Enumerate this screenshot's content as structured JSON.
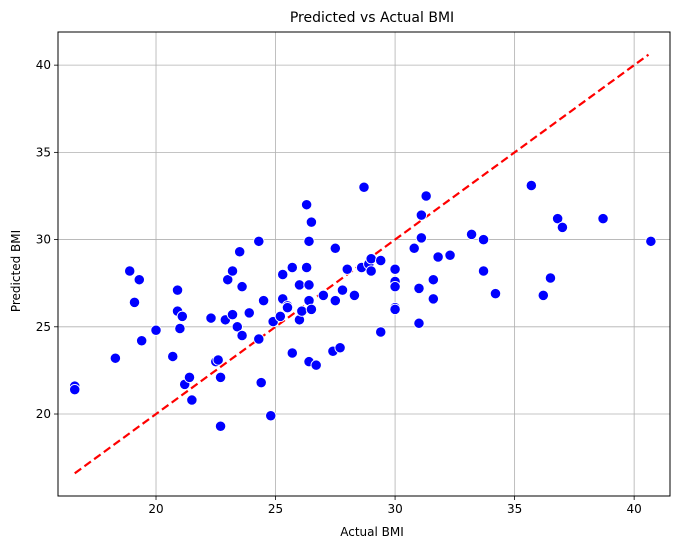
{
  "chart_data": {
    "type": "scatter",
    "title": "Predicted vs Actual BMI",
    "xlabel": "Actual BMI",
    "ylabel": "Predicted BMI",
    "xlim": [
      15.9,
      41.5
    ],
    "ylim": [
      15.3,
      41.9
    ],
    "xticks": [
      20,
      25,
      30,
      35,
      40
    ],
    "yticks": [
      20,
      25,
      30,
      35,
      40
    ],
    "grid": true,
    "point_color": "#0000ff",
    "point_edge_color": "#ffffff",
    "reference_line": {
      "style": "dashed",
      "color": "#ff0000",
      "from": [
        16.6,
        16.6
      ],
      "to": [
        40.6,
        40.6
      ]
    },
    "points": [
      [
        16.6,
        21.6
      ],
      [
        16.6,
        21.4
      ],
      [
        18.3,
        23.2
      ],
      [
        18.9,
        28.2
      ],
      [
        19.1,
        26.4
      ],
      [
        19.3,
        27.7
      ],
      [
        19.4,
        24.2
      ],
      [
        20.0,
        24.8
      ],
      [
        20.7,
        23.3
      ],
      [
        20.9,
        27.1
      ],
      [
        20.9,
        25.9
      ],
      [
        21.0,
        24.9
      ],
      [
        21.1,
        25.6
      ],
      [
        21.2,
        21.7
      ],
      [
        21.4,
        22.1
      ],
      [
        21.5,
        20.8
      ],
      [
        22.3,
        25.5
      ],
      [
        22.5,
        23.0
      ],
      [
        22.6,
        23.1
      ],
      [
        22.7,
        19.3
      ],
      [
        22.7,
        22.1
      ],
      [
        22.9,
        25.4
      ],
      [
        23.0,
        27.7
      ],
      [
        23.2,
        28.2
      ],
      [
        23.2,
        25.7
      ],
      [
        23.4,
        25.0
      ],
      [
        23.5,
        29.3
      ],
      [
        23.6,
        27.3
      ],
      [
        23.6,
        24.5
      ],
      [
        23.9,
        25.8
      ],
      [
        24.3,
        29.9
      ],
      [
        24.3,
        24.3
      ],
      [
        24.4,
        21.8
      ],
      [
        24.5,
        26.5
      ],
      [
        24.8,
        19.9
      ],
      [
        24.9,
        25.3
      ],
      [
        25.2,
        25.6
      ],
      [
        25.3,
        28.0
      ],
      [
        25.3,
        26.6
      ],
      [
        25.5,
        26.2
      ],
      [
        25.5,
        26.1
      ],
      [
        25.7,
        28.4
      ],
      [
        25.7,
        23.5
      ],
      [
        26.0,
        27.4
      ],
      [
        26.0,
        25.4
      ],
      [
        26.1,
        25.9
      ],
      [
        26.3,
        32.0
      ],
      [
        26.3,
        28.4
      ],
      [
        26.4,
        29.9
      ],
      [
        26.4,
        27.4
      ],
      [
        26.4,
        26.5
      ],
      [
        26.4,
        23.0
      ],
      [
        26.5,
        31.0
      ],
      [
        26.5,
        26.0
      ],
      [
        26.7,
        22.8
      ],
      [
        27.0,
        26.8
      ],
      [
        27.4,
        23.6
      ],
      [
        27.5,
        29.5
      ],
      [
        27.5,
        26.5
      ],
      [
        27.7,
        23.8
      ],
      [
        27.8,
        27.1
      ],
      [
        28.0,
        28.3
      ],
      [
        28.3,
        26.8
      ],
      [
        28.6,
        28.4
      ],
      [
        28.7,
        33.0
      ],
      [
        28.9,
        28.6
      ],
      [
        29.0,
        28.9
      ],
      [
        29.0,
        28.2
      ],
      [
        29.4,
        28.8
      ],
      [
        29.4,
        24.7
      ],
      [
        30.0,
        28.3
      ],
      [
        30.0,
        27.6
      ],
      [
        30.0,
        27.3
      ],
      [
        30.0,
        26.1
      ],
      [
        30.0,
        26.0
      ],
      [
        30.8,
        29.5
      ],
      [
        31.0,
        27.2
      ],
      [
        31.0,
        25.2
      ],
      [
        31.1,
        31.4
      ],
      [
        31.1,
        30.1
      ],
      [
        31.3,
        32.5
      ],
      [
        31.6,
        27.7
      ],
      [
        31.6,
        26.6
      ],
      [
        31.8,
        29.0
      ],
      [
        32.3,
        29.1
      ],
      [
        33.2,
        30.3
      ],
      [
        33.7,
        30.0
      ],
      [
        33.7,
        28.2
      ],
      [
        34.2,
        26.9
      ],
      [
        35.7,
        33.1
      ],
      [
        36.2,
        26.8
      ],
      [
        36.5,
        27.8
      ],
      [
        36.8,
        31.2
      ],
      [
        37.0,
        30.7
      ],
      [
        38.7,
        31.2
      ],
      [
        40.7,
        29.9
      ]
    ]
  }
}
